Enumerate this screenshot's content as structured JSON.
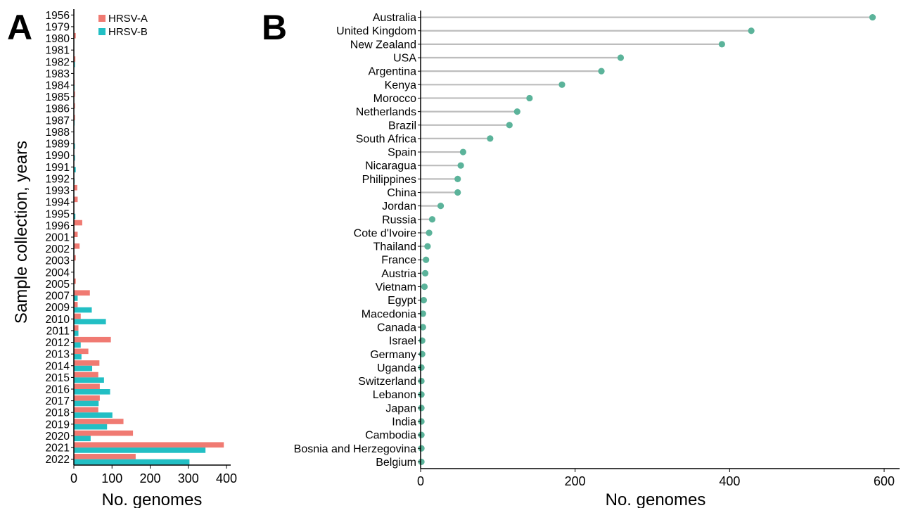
{
  "colors": {
    "hrsv_a": "#F07A72",
    "hrsv_b": "#22BFC4",
    "stem": "#BDBDBD",
    "point": "#5BB39A"
  },
  "chart_data": [
    {
      "panel": "A",
      "type": "bar",
      "orientation": "horizontal",
      "xlabel": "No. genomes",
      "ylabel": "Sample collection, years",
      "xlim": [
        0,
        400
      ],
      "xticks": [
        0,
        100,
        200,
        300,
        400
      ],
      "legend": {
        "placement": "top-left"
      },
      "categories": [
        "1956",
        "1979",
        "1980",
        "1981",
        "1982",
        "1983",
        "1984",
        "1985",
        "1986",
        "1987",
        "1988",
        "1989",
        "1990",
        "1991",
        "1992",
        "1993",
        "1994",
        "1995",
        "1996",
        "2001",
        "2002",
        "2003",
        "2004",
        "2005",
        "2007",
        "2009",
        "2010",
        "2011",
        "2012",
        "2013",
        "2014",
        "2015",
        "2016",
        "2017",
        "2018",
        "2019",
        "2020",
        "2021",
        "2022"
      ],
      "series": [
        {
          "name": "HRSV-A",
          "values": [
            1,
            0,
            5,
            0,
            4,
            0,
            2,
            3,
            3,
            3,
            1,
            1,
            1,
            1,
            1,
            9,
            10,
            1,
            22,
            10,
            15,
            5,
            1,
            5,
            42,
            10,
            18,
            12,
            97,
            38,
            67,
            64,
            68,
            68,
            64,
            130,
            155,
            393,
            162
          ]
        },
        {
          "name": "HRSV-B",
          "values": [
            0,
            1,
            1,
            1,
            3,
            1,
            2,
            1,
            1,
            2,
            1,
            3,
            3,
            5,
            2,
            1,
            1,
            4,
            1,
            1,
            1,
            1,
            1,
            1,
            10,
            47,
            84,
            12,
            18,
            20,
            48,
            79,
            95,
            65,
            101,
            87,
            44,
            345,
            303
          ]
        }
      ]
    },
    {
      "panel": "B",
      "type": "scatter",
      "style": "lollipop",
      "xlabel": "No. genomes",
      "ylabel": "",
      "xlim": [
        0,
        620
      ],
      "xticks": [
        0,
        200,
        400,
        600
      ],
      "categories": [
        "Australia",
        "United Kingdom",
        "New Zealand",
        "USA",
        "Argentina",
        "Kenya",
        "Morocco",
        "Netherlands",
        "Brazil",
        "South Africa",
        "Spain",
        "Nicaragua",
        "Philippines",
        "China",
        "Jordan",
        "Russia",
        "Cote d'Ivoire",
        "Thailand",
        "France",
        "Austria",
        "Vietnam",
        "Egypt",
        "Macedonia",
        "Canada",
        "Israel",
        "Germany",
        "Uganda",
        "Switzerland",
        "Lebanon",
        "Japan",
        "India",
        "Cambodia",
        "Bosnia and Herzegovina",
        "Belgium"
      ],
      "values": [
        585,
        428,
        390,
        259,
        234,
        183,
        141,
        125,
        115,
        90,
        55,
        52,
        48,
        48,
        26,
        15,
        11,
        9,
        7,
        6,
        5,
        4,
        3,
        3,
        2,
        2,
        1,
        1,
        1,
        1,
        1,
        1,
        1,
        1
      ]
    }
  ]
}
